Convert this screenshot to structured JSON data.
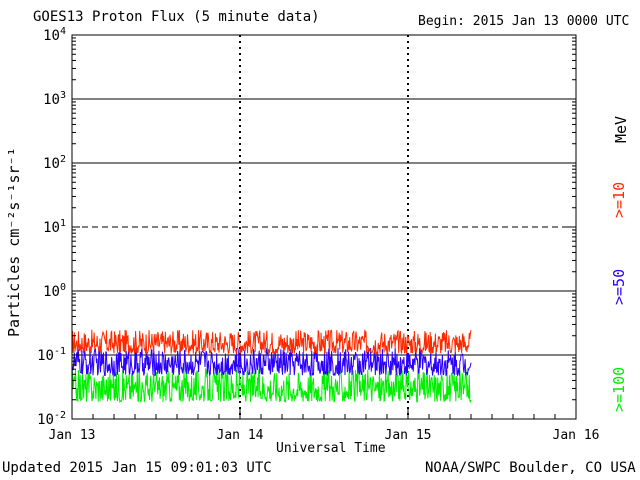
{
  "header": {
    "title": "GOES13 Proton Flux (5 minute data)",
    "begin": "Begin: 2015 Jan 13 0000 UTC"
  },
  "footer": {
    "updated": "Updated 2015 Jan 15 09:01:03 UTC",
    "source": "NOAA/SWPC Boulder, CO USA"
  },
  "colors": {
    "ge10": "#ff2a00",
    "ge50": "#2b00ff",
    "ge100": "#00ee00",
    "grid": "#000000"
  },
  "chart_data": {
    "type": "line",
    "title": "GOES13 Proton Flux (5 minute data)",
    "xlabel": "Universal Time",
    "ylabel": "Particles cm⁻²s⁻¹sr⁻¹",
    "y_scale": "log",
    "ylim": [
      0.01,
      10000
    ],
    "xlim": [
      "2015-01-13 00:00",
      "2015-01-16 00:00"
    ],
    "x_ticks": [
      "Jan 13",
      "Jan 14",
      "Jan 15",
      "Jan 16"
    ],
    "y_ticks": [
      {
        "base": "10",
        "exp": "4"
      },
      {
        "base": "10",
        "exp": "3"
      },
      {
        "base": "10",
        "exp": "2"
      },
      {
        "base": "10",
        "exp": "1"
      },
      {
        "base": "10",
        "exp": "0"
      },
      {
        "base": "10",
        "exp": "-1"
      },
      {
        "base": "10",
        "exp": "-2"
      }
    ],
    "unit_label": "MeV",
    "grid": true,
    "dashed_gridline_at": 10,
    "data_end": "2015-01-15 09:00",
    "series": [
      {
        "name": ">=10",
        "typical_range": [
          0.09,
          0.25
        ]
      },
      {
        "name": ">=50",
        "typical_range": [
          0.04,
          0.13
        ]
      },
      {
        "name": ">=100",
        "typical_range": [
          0.015,
          0.06
        ]
      }
    ]
  }
}
